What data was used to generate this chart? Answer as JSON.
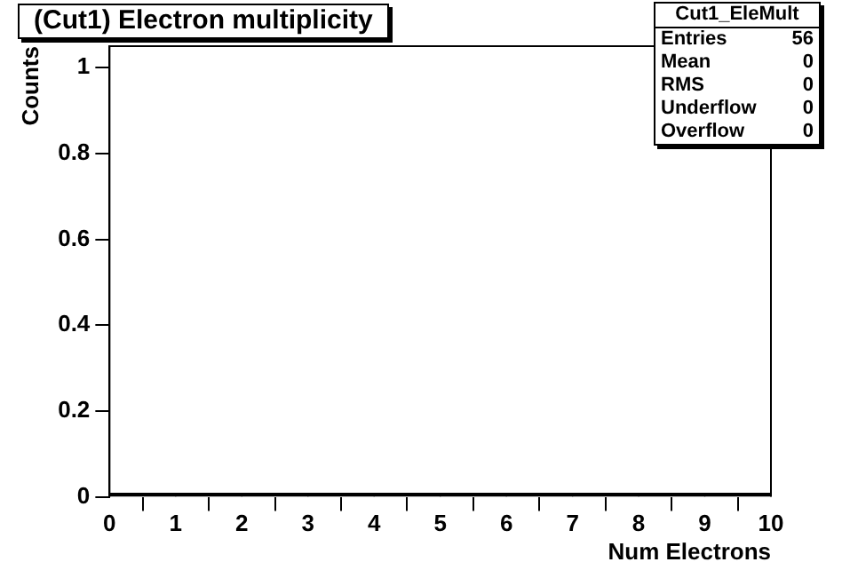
{
  "chart_data": {
    "type": "histogram",
    "title": "(Cut1) Electron multiplicity",
    "xlabel": "Num Electrons",
    "ylabel": "Counts",
    "bins": [
      0,
      1,
      2,
      3,
      4,
      5,
      6,
      7,
      8,
      9,
      10
    ],
    "values": [
      0,
      0,
      0,
      0,
      0,
      0,
      0,
      0,
      0,
      0
    ],
    "color": "#000000",
    "xlim": [
      0,
      10
    ],
    "xticks": [
      0,
      1,
      2,
      3,
      4,
      5,
      6,
      7,
      8,
      9,
      10
    ],
    "ylim": [
      0,
      1.05
    ],
    "yticks": [
      0,
      0.2,
      0.4,
      0.6,
      0.8,
      1
    ],
    "grid": false,
    "legend": false,
    "annotations": [
      "Cut1_EleMult",
      "Entries 56",
      "Mean 0",
      "RMS 0",
      "Underflow 0",
      "Overflow 0"
    ]
  }
}
